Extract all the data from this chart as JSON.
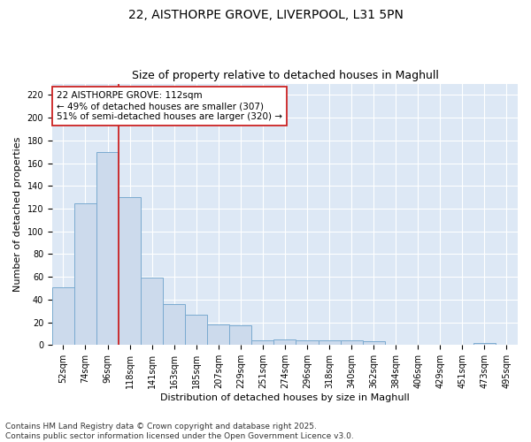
{
  "title_line1": "22, AISTHORPE GROVE, LIVERPOOL, L31 5PN",
  "title_line2": "Size of property relative to detached houses in Maghull",
  "xlabel": "Distribution of detached houses by size in Maghull",
  "ylabel": "Number of detached properties",
  "annotation_line1": "22 AISTHORPE GROVE: 112sqm",
  "annotation_line2": "← 49% of detached houses are smaller (307)",
  "annotation_line3": "51% of semi-detached houses are larger (320) →",
  "footer_line1": "Contains HM Land Registry data © Crown copyright and database right 2025.",
  "footer_line2": "Contains public sector information licensed under the Open Government Licence v3.0.",
  "categories": [
    "52sqm",
    "74sqm",
    "96sqm",
    "118sqm",
    "141sqm",
    "163sqm",
    "185sqm",
    "207sqm",
    "229sqm",
    "251sqm",
    "274sqm",
    "296sqm",
    "318sqm",
    "340sqm",
    "362sqm",
    "384sqm",
    "406sqm",
    "429sqm",
    "451sqm",
    "473sqm",
    "495sqm"
  ],
  "values": [
    51,
    125,
    170,
    130,
    59,
    36,
    27,
    18,
    17,
    4,
    5,
    4,
    4,
    4,
    3,
    0,
    0,
    0,
    0,
    2,
    0
  ],
  "bar_color": "#ccdaec",
  "bar_edge_color": "#7aaad0",
  "red_line_x": 2.5,
  "ylim": [
    0,
    230
  ],
  "yticks": [
    0,
    20,
    40,
    60,
    80,
    100,
    120,
    140,
    160,
    180,
    200,
    220
  ],
  "figure_bg_color": "#ffffff",
  "plot_bg_color": "#dde8f5",
  "grid_color": "#ffffff",
  "annotation_box_facecolor": "#ffffff",
  "annotation_box_edgecolor": "#cc2222",
  "red_line_color": "#cc2222",
  "title_fontsize": 10,
  "subtitle_fontsize": 9,
  "axis_label_fontsize": 8,
  "tick_fontsize": 7,
  "annotation_fontsize": 7.5,
  "footer_fontsize": 6.5
}
